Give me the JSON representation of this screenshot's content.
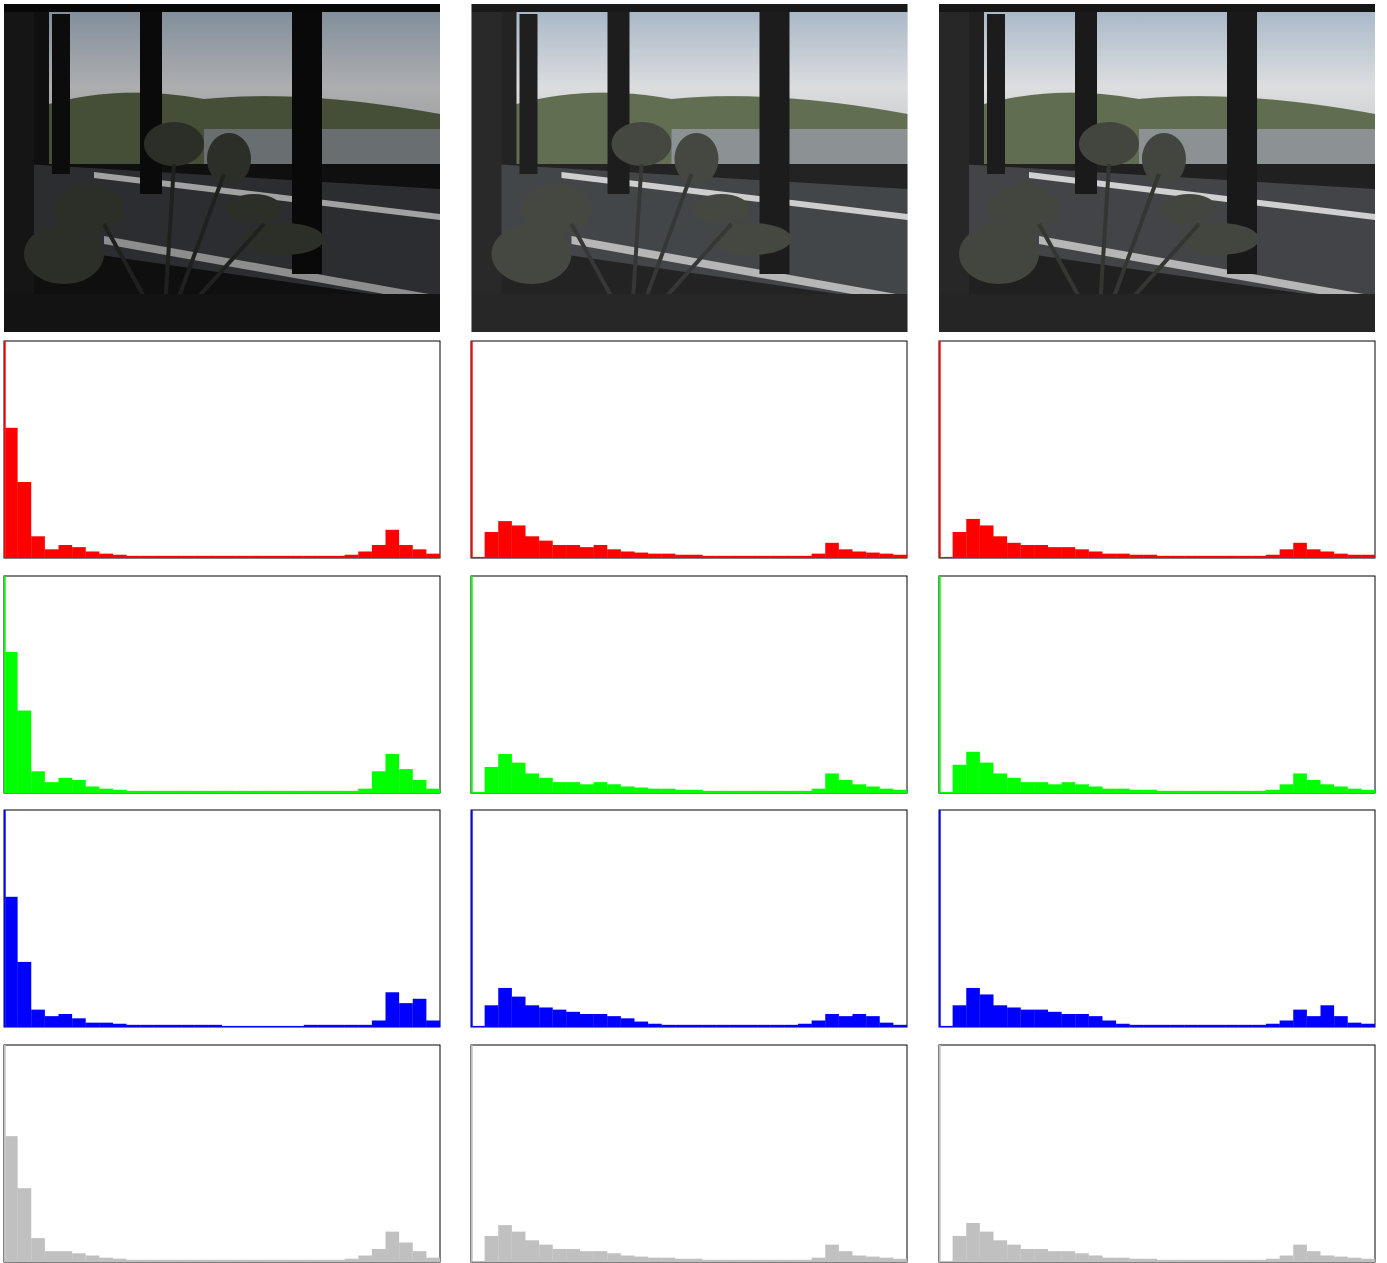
{
  "chart_data": [
    {
      "type": "histogram",
      "color": "#ff0000",
      "xlim": [
        0,
        256
      ],
      "ylim": [
        0,
        100
      ],
      "bins": [
        0,
        1,
        8,
        16,
        24,
        32,
        40,
        48,
        56,
        64,
        72,
        80,
        88,
        96,
        104,
        112,
        120,
        128,
        136,
        144,
        152,
        160,
        168,
        176,
        184,
        192,
        200,
        208,
        216,
        224,
        232,
        240,
        248,
        256
      ],
      "values": [
        100,
        60,
        35,
        10,
        4,
        6,
        5,
        3,
        2,
        1.5,
        1,
        1,
        1,
        1,
        1,
        1,
        1,
        1,
        1,
        1,
        1,
        1,
        1,
        1,
        1,
        1,
        1.5,
        3,
        6,
        13,
        6,
        4,
        2
      ]
    },
    {
      "type": "histogram",
      "color": "#00ff00",
      "xlim": [
        0,
        256
      ],
      "ylim": [
        0,
        100
      ],
      "bins": [
        0,
        1,
        8,
        16,
        24,
        32,
        40,
        48,
        56,
        64,
        72,
        80,
        88,
        96,
        104,
        112,
        120,
        128,
        136,
        144,
        152,
        160,
        168,
        176,
        184,
        192,
        200,
        208,
        216,
        224,
        232,
        240,
        248,
        256
      ],
      "values": [
        100,
        65,
        38,
        10,
        5,
        7,
        6,
        3,
        2,
        1.5,
        1,
        1,
        1,
        1,
        1,
        1,
        1,
        1,
        1,
        1,
        1,
        1,
        1,
        1,
        1,
        1,
        1,
        2,
        10,
        18,
        11,
        6,
        2
      ]
    },
    {
      "type": "histogram",
      "color": "#0000ff",
      "xlim": [
        0,
        256
      ],
      "ylim": [
        0,
        100
      ],
      "bins": [
        0,
        1,
        8,
        16,
        24,
        32,
        40,
        48,
        56,
        64,
        72,
        80,
        88,
        96,
        104,
        112,
        120,
        128,
        136,
        144,
        152,
        160,
        168,
        176,
        184,
        192,
        200,
        208,
        216,
        224,
        232,
        240,
        248,
        256
      ],
      "values": [
        100,
        60,
        30,
        8,
        5,
        6,
        4,
        2,
        2,
        1.5,
        1,
        1,
        1,
        1,
        1,
        1,
        1,
        0.5,
        0.5,
        0.5,
        0.5,
        0.5,
        0.5,
        1,
        1,
        1,
        1,
        1,
        3,
        16,
        11,
        13,
        3
      ]
    },
    {
      "type": "histogram",
      "color": "#c0c0c0",
      "xlim": [
        0,
        256
      ],
      "ylim": [
        0,
        100
      ],
      "bins": [
        0,
        1,
        8,
        16,
        24,
        32,
        40,
        48,
        56,
        64,
        72,
        80,
        88,
        96,
        104,
        112,
        120,
        128,
        136,
        144,
        152,
        160,
        168,
        176,
        184,
        192,
        200,
        208,
        216,
        224,
        232,
        240,
        248,
        256
      ],
      "values": [
        100,
        58,
        34,
        11,
        5,
        5,
        4,
        3,
        2,
        1.5,
        1,
        1,
        1,
        1,
        1,
        1,
        1,
        1,
        1,
        1,
        1,
        1,
        1,
        1,
        1,
        1,
        1.5,
        3,
        6,
        14,
        9,
        5,
        2
      ]
    },
    {
      "type": "histogram",
      "color": "#ff0000",
      "xlim": [
        0,
        256
      ],
      "ylim": [
        0,
        100
      ],
      "bins": [
        0,
        1,
        8,
        16,
        24,
        32,
        40,
        48,
        56,
        64,
        72,
        80,
        88,
        96,
        104,
        112,
        120,
        128,
        136,
        144,
        152,
        160,
        168,
        176,
        184,
        192,
        200,
        208,
        216,
        224,
        232,
        240,
        248,
        256
      ],
      "values": [
        100,
        0.5,
        12,
        17,
        15,
        10,
        8,
        6,
        6,
        5,
        6,
        4,
        3,
        2.5,
        2,
        2,
        1.5,
        1.5,
        1,
        1,
        1,
        1,
        1,
        1,
        1,
        1,
        2,
        7,
        4,
        3,
        2.5,
        2,
        1.5
      ]
    },
    {
      "type": "histogram",
      "color": "#00ff00",
      "xlim": [
        0,
        256
      ],
      "ylim": [
        0,
        100
      ],
      "bins": [
        0,
        1,
        8,
        16,
        24,
        32,
        40,
        48,
        56,
        64,
        72,
        80,
        88,
        96,
        104,
        112,
        120,
        128,
        136,
        144,
        152,
        160,
        168,
        176,
        184,
        192,
        200,
        208,
        216,
        224,
        232,
        240,
        248,
        256
      ],
      "values": [
        100,
        0.5,
        12,
        18,
        14,
        9,
        7,
        5,
        5,
        4,
        5,
        4,
        3,
        2.5,
        2,
        2,
        1.5,
        1.5,
        1,
        1,
        1,
        1,
        1,
        1,
        1,
        1,
        2,
        9,
        6,
        4,
        3,
        2,
        1.5
      ]
    },
    {
      "type": "histogram",
      "color": "#0000ff",
      "xlim": [
        0,
        256
      ],
      "ylim": [
        0,
        100
      ],
      "bins": [
        0,
        1,
        8,
        16,
        24,
        32,
        40,
        48,
        56,
        64,
        72,
        80,
        88,
        96,
        104,
        112,
        120,
        128,
        136,
        144,
        152,
        160,
        168,
        176,
        184,
        192,
        200,
        208,
        216,
        224,
        232,
        240,
        248,
        256
      ],
      "values": [
        100,
        0.5,
        10,
        18,
        14,
        10,
        9,
        8,
        7,
        6,
        6,
        5,
        4,
        2.5,
        1.5,
        1,
        1,
        1,
        1,
        1,
        1,
        1,
        1,
        1,
        1,
        1.5,
        3,
        6,
        5,
        6,
        5,
        2,
        1
      ]
    },
    {
      "type": "histogram",
      "color": "#c0c0c0",
      "xlim": [
        0,
        256
      ],
      "ylim": [
        0,
        100
      ],
      "bins": [
        0,
        1,
        8,
        16,
        24,
        32,
        40,
        48,
        56,
        64,
        72,
        80,
        88,
        96,
        104,
        112,
        120,
        128,
        136,
        144,
        152,
        160,
        168,
        176,
        184,
        192,
        200,
        208,
        216,
        224,
        232,
        240,
        248,
        256
      ],
      "values": [
        100,
        0.5,
        12,
        17,
        14,
        10,
        8,
        6,
        6,
        5,
        5,
        4,
        3,
        2.5,
        2,
        2,
        1.5,
        1.5,
        1,
        1,
        1,
        1,
        1,
        1,
        1,
        1,
        2,
        8,
        5,
        3,
        2.5,
        2,
        1.5
      ]
    },
    {
      "type": "histogram",
      "color": "#ff0000",
      "xlim": [
        0,
        256
      ],
      "ylim": [
        0,
        100
      ],
      "bins": [
        0,
        1,
        8,
        16,
        24,
        32,
        40,
        48,
        56,
        64,
        72,
        80,
        88,
        96,
        104,
        112,
        120,
        128,
        136,
        144,
        152,
        160,
        168,
        176,
        184,
        192,
        200,
        208,
        216,
        224,
        232,
        240,
        248,
        256
      ],
      "values": [
        100,
        0.5,
        12,
        18,
        15,
        10,
        7,
        6,
        6,
        5,
        5,
        4,
        3,
        2,
        2,
        1.5,
        1.5,
        1,
        1,
        1,
        1,
        1,
        1,
        1,
        1,
        1.5,
        4,
        7,
        4,
        3,
        2,
        1.5,
        1.5
      ]
    },
    {
      "type": "histogram",
      "color": "#00ff00",
      "xlim": [
        0,
        256
      ],
      "ylim": [
        0,
        100
      ],
      "bins": [
        0,
        1,
        8,
        16,
        24,
        32,
        40,
        48,
        56,
        64,
        72,
        80,
        88,
        96,
        104,
        112,
        120,
        128,
        136,
        144,
        152,
        160,
        168,
        176,
        184,
        192,
        200,
        208,
        216,
        224,
        232,
        240,
        248,
        256
      ],
      "values": [
        100,
        0.5,
        13,
        19,
        14,
        9,
        7,
        5,
        5,
        4,
        5,
        4,
        3,
        2,
        2,
        1.5,
        1.5,
        1,
        1,
        1,
        1,
        1,
        1,
        1,
        1,
        1.5,
        4,
        9,
        6,
        4,
        3,
        2,
        1.5
      ]
    },
    {
      "type": "histogram",
      "color": "#0000ff",
      "xlim": [
        0,
        256
      ],
      "ylim": [
        0,
        100
      ],
      "bins": [
        0,
        1,
        8,
        16,
        24,
        32,
        40,
        48,
        56,
        64,
        72,
        80,
        88,
        96,
        104,
        112,
        120,
        128,
        136,
        144,
        152,
        160,
        168,
        176,
        184,
        192,
        200,
        208,
        216,
        224,
        232,
        240,
        248,
        256
      ],
      "values": [
        100,
        0.5,
        10,
        18,
        15,
        10,
        9,
        8,
        8,
        7,
        6,
        6,
        5,
        3,
        1.5,
        1,
        1,
        1,
        1,
        1,
        1,
        1,
        1,
        1,
        1,
        1.5,
        3,
        8,
        5,
        10,
        5,
        2,
        1.5
      ]
    },
    {
      "type": "histogram",
      "color": "#c0c0c0",
      "xlim": [
        0,
        256
      ],
      "ylim": [
        0,
        100
      ],
      "bins": [
        0,
        1,
        8,
        16,
        24,
        32,
        40,
        48,
        56,
        64,
        72,
        80,
        88,
        96,
        104,
        112,
        120,
        128,
        136,
        144,
        152,
        160,
        168,
        176,
        184,
        192,
        200,
        208,
        216,
        224,
        232,
        240,
        248,
        256
      ],
      "values": [
        100,
        0.5,
        12,
        18,
        14,
        10,
        8,
        6,
        6,
        5,
        5,
        4,
        3,
        2,
        2,
        1.5,
        1.5,
        1,
        1,
        1,
        1,
        1,
        1,
        1,
        1,
        1.5,
        3,
        8,
        5,
        3,
        2.5,
        2,
        1.5
      ]
    }
  ]
}
